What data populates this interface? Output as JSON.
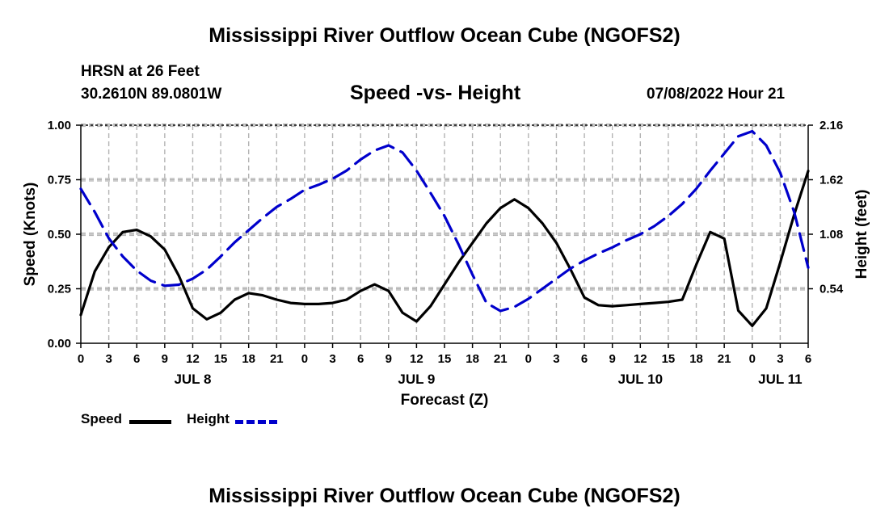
{
  "page": {
    "title": "Mississippi River Outflow Ocean Cube (NGOFS2)",
    "footer_title": "Mississippi River Outflow Ocean Cube (NGOFS2)",
    "station_line": "HRSN at 26 Feet",
    "coords_line": "30.2610N  89.0801W",
    "date_line": "07/08/2022 Hour 21"
  },
  "chart_data": {
    "type": "line",
    "title": "Speed -vs- Height",
    "xlabel": "Forecast (Z)",
    "ylabel": "Speed (Knots)",
    "y2label": "Height (feet)",
    "xlim": [
      0,
      78
    ],
    "ylim": [
      0,
      1.0
    ],
    "y2lim": [
      0.0,
      2.16
    ],
    "x_ticks": [
      0,
      3,
      6,
      9,
      12,
      15,
      18,
      21,
      24,
      27,
      30,
      33,
      36,
      39,
      42,
      45,
      48,
      51,
      54,
      57,
      60,
      63,
      66,
      69,
      72,
      75,
      78
    ],
    "x_tick_labels": [
      "0",
      "3",
      "6",
      "9",
      "12",
      "15",
      "18",
      "21",
      "0",
      "3",
      "6",
      "9",
      "12",
      "15",
      "18",
      "21",
      "0",
      "3",
      "6",
      "9",
      "12",
      "15",
      "18",
      "21",
      "0",
      "3",
      "6"
    ],
    "date_labels": [
      {
        "x": 12,
        "label": "JUL 8"
      },
      {
        "x": 36,
        "label": "JUL 9"
      },
      {
        "x": 60,
        "label": "JUL 10"
      },
      {
        "x": 75,
        "label": "JUL 11"
      }
    ],
    "y_ticks": [
      0.0,
      0.25,
      0.5,
      0.75,
      1.0
    ],
    "y_tick_labels": [
      "0.00",
      "0.25",
      "0.50",
      "0.75",
      "1.00"
    ],
    "y2_ticks": [
      0.54,
      1.08,
      1.62,
      2.16
    ],
    "y2_tick_labels": [
      "0.54",
      "1.08",
      "1.62",
      "2.16"
    ],
    "grid": true,
    "legend_position": "bottom-left",
    "series": [
      {
        "name": "Speed",
        "axis": "left",
        "color": "#000000",
        "style": "solid",
        "x": [
          0,
          1.5,
          3,
          4.5,
          6,
          7.5,
          9,
          10.5,
          12,
          13.5,
          15,
          16.5,
          18,
          19.5,
          21,
          22.5,
          24,
          25.5,
          27,
          28.5,
          30,
          31.5,
          33,
          34.5,
          36,
          37.5,
          39,
          40.5,
          42,
          43.5,
          45,
          46.5,
          48,
          49.5,
          51,
          52.5,
          54,
          55.5,
          57,
          58.5,
          60,
          61.5,
          63,
          64.5,
          66,
          67.5,
          69,
          70.5,
          72,
          73.5,
          75,
          76.5,
          78
        ],
        "values": [
          0.13,
          0.33,
          0.44,
          0.51,
          0.52,
          0.49,
          0.43,
          0.31,
          0.16,
          0.11,
          0.14,
          0.2,
          0.23,
          0.22,
          0.2,
          0.185,
          0.18,
          0.18,
          0.185,
          0.2,
          0.24,
          0.27,
          0.24,
          0.14,
          0.1,
          0.17,
          0.27,
          0.37,
          0.46,
          0.55,
          0.62,
          0.66,
          0.62,
          0.55,
          0.46,
          0.34,
          0.21,
          0.175,
          0.17,
          0.175,
          0.18,
          0.185,
          0.19,
          0.2,
          0.36,
          0.51,
          0.48,
          0.15,
          0.08,
          0.16,
          0.37,
          0.59,
          0.79
        ]
      },
      {
        "name": "Height",
        "axis": "right",
        "color": "#0000cc",
        "style": "dashed",
        "x": [
          0,
          1.5,
          3,
          4.5,
          6,
          7.5,
          9,
          10.5,
          12,
          13.5,
          15,
          16.5,
          18,
          19.5,
          21,
          22.5,
          24,
          25.5,
          27,
          28.5,
          30,
          31.5,
          33,
          34.5,
          36,
          37.5,
          39,
          40.5,
          42,
          43.5,
          45,
          46.5,
          48,
          49.5,
          51,
          52.5,
          54,
          55.5,
          57,
          58.5,
          60,
          61.5,
          63,
          64.5,
          66,
          67.5,
          69,
          70.5,
          72,
          73.5,
          75,
          76.5,
          78
        ],
        "values": [
          1.53,
          1.3,
          1.04,
          0.86,
          0.72,
          0.62,
          0.57,
          0.58,
          0.64,
          0.73,
          0.86,
          1.0,
          1.12,
          1.24,
          1.35,
          1.43,
          1.52,
          1.57,
          1.63,
          1.71,
          1.82,
          1.91,
          1.96,
          1.89,
          1.71,
          1.49,
          1.26,
          0.98,
          0.68,
          0.4,
          0.32,
          0.36,
          0.44,
          0.54,
          0.64,
          0.74,
          0.82,
          0.89,
          0.95,
          1.02,
          1.08,
          1.16,
          1.26,
          1.38,
          1.53,
          1.71,
          1.88,
          2.05,
          2.1,
          1.96,
          1.69,
          1.3,
          0.75
        ]
      }
    ]
  },
  "legend": {
    "speed_label": "Speed",
    "height_label": "Height"
  }
}
